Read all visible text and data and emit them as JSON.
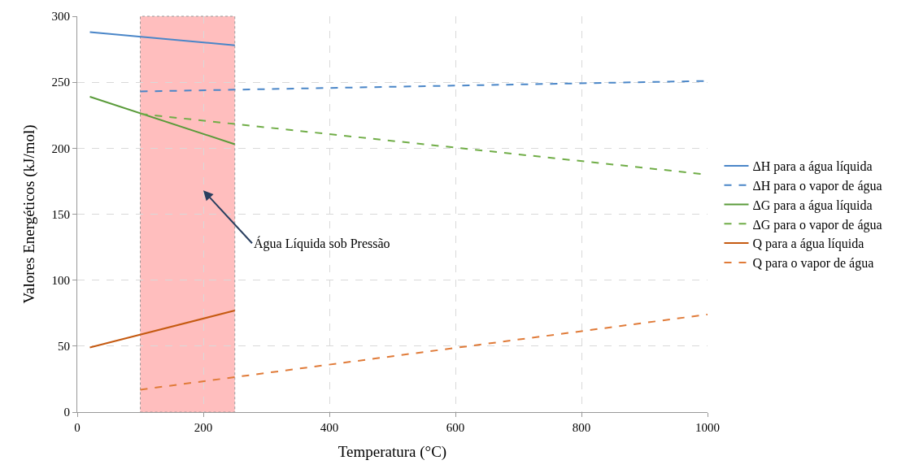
{
  "chart_data": {
    "type": "line",
    "xlabel": "Temperatura (°C)",
    "ylabel": "Valores Energéticos (kJ/mol)",
    "xlim": [
      0,
      1000
    ],
    "xticks": [
      0,
      200,
      400,
      600,
      800,
      1000
    ],
    "ylim": [
      0,
      300
    ],
    "yticks": [
      0,
      50,
      100,
      150,
      200,
      250,
      300
    ],
    "grid": true,
    "legend": "right",
    "marker": "none",
    "series": [
      {
        "name": "ΔH para a água líquida",
        "color": "#4a86c8",
        "line_style": "solid",
        "x": [
          20,
          250
        ],
        "values": [
          288,
          278
        ]
      },
      {
        "name": "ΔH para o vapor de água",
        "color": "#4a86c8",
        "line_style": "dashed",
        "x": [
          100,
          1000
        ],
        "values": [
          243,
          251
        ]
      },
      {
        "name": "ΔG para a água líquida",
        "color": "#5a9b3a",
        "line_style": "solid",
        "x": [
          20,
          250
        ],
        "values": [
          239,
          203
        ]
      },
      {
        "name": "ΔG para o vapor de água",
        "color": "#70ad47",
        "line_style": "dashed",
        "x": [
          100,
          1000
        ],
        "values": [
          226,
          180
        ]
      },
      {
        "name": "Q para a água líquida",
        "color": "#c55a11",
        "line_style": "solid",
        "x": [
          20,
          250
        ],
        "values": [
          49,
          77
        ]
      },
      {
        "name": "Q para o vapor de água",
        "color": "#e07b39",
        "line_style": "dashed",
        "x": [
          100,
          1000
        ],
        "values": [
          17,
          74
        ]
      }
    ],
    "bands": [
      {
        "axis": "x",
        "from": 100,
        "to": 250,
        "color": "#ffb3b3"
      }
    ],
    "annotations": [
      "Água Líquida sob Pressão"
    ]
  }
}
